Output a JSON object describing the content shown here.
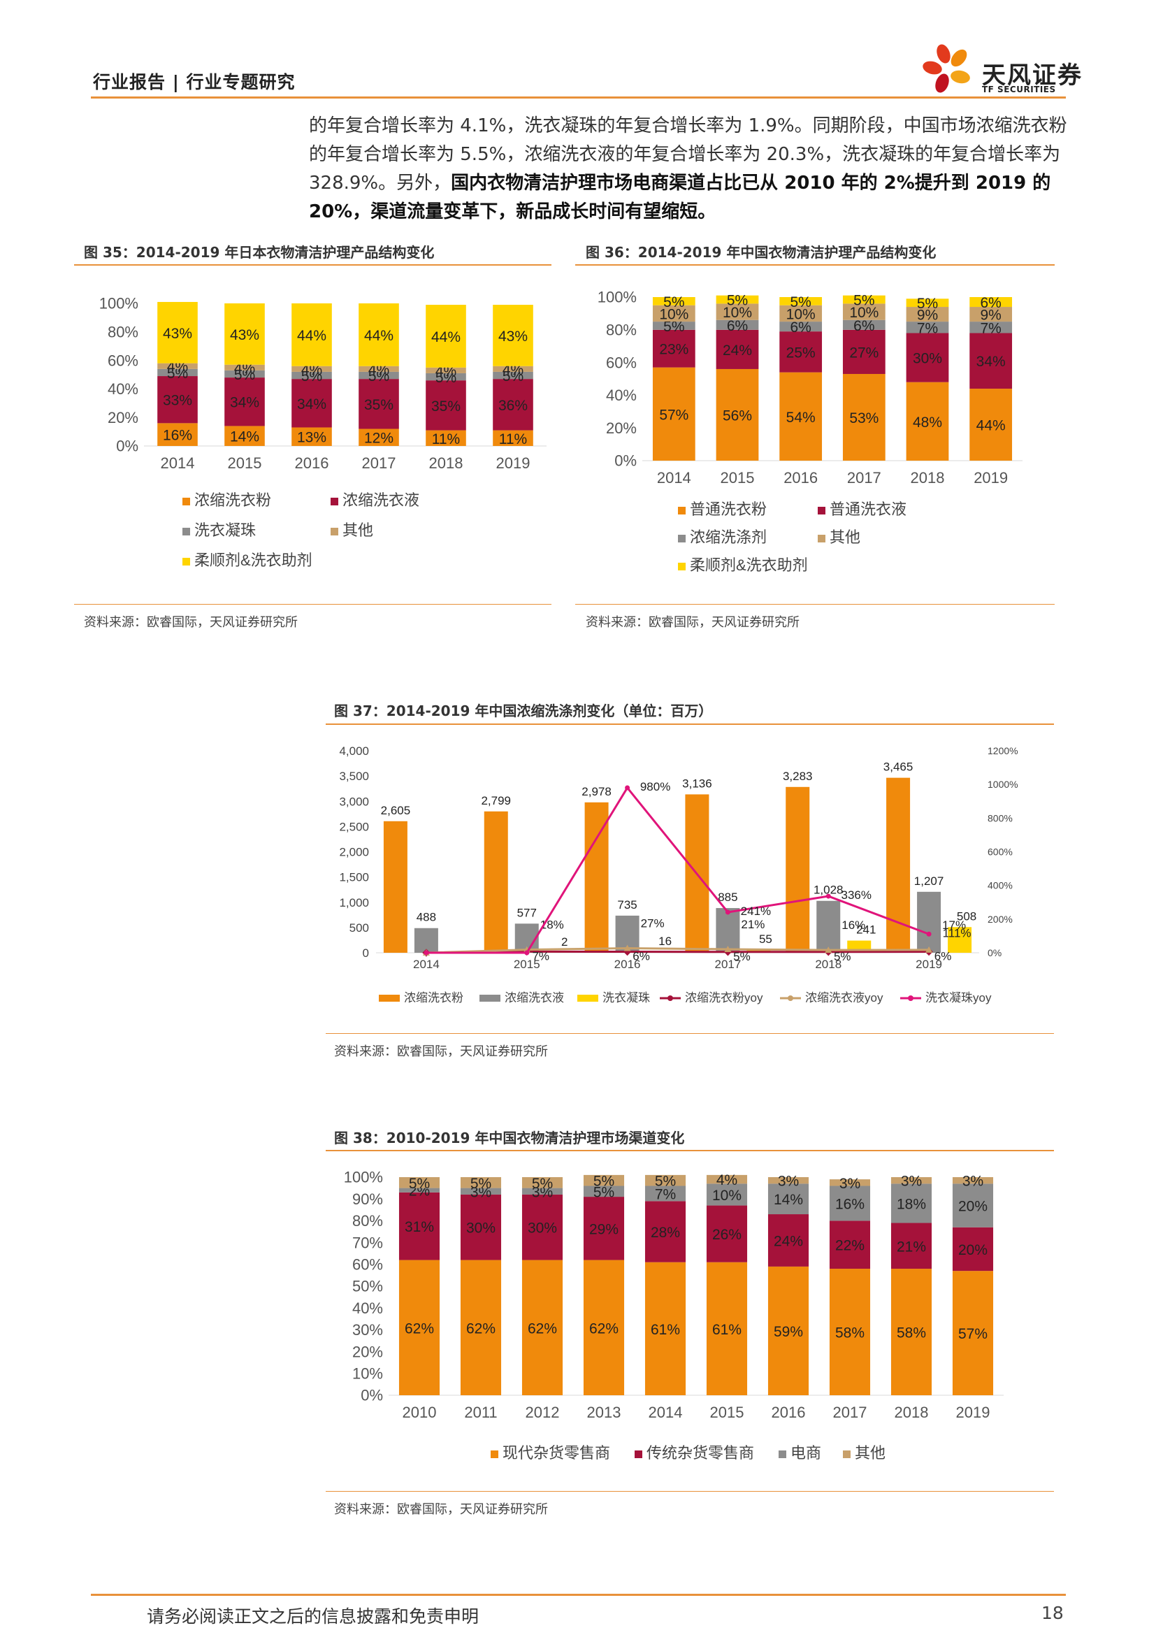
{
  "header": {
    "title": "行业报告 | 行业专题研究"
  },
  "logo": {
    "name_cn": "天风证券",
    "name_en": "TF SECURITIES"
  },
  "paragraph": {
    "normal1": "的年复合增长率为 4.1%，洗衣凝珠的年复合增长率为 1.9%。同期阶段，中国市场浓缩洗衣粉的年复合增长率为 5.5%，浓缩洗衣液的年复合增长率为 20.3%，洗衣凝珠的年复合增长率为 328.9%。另外，",
    "bold": "国内衣物清洁护理市场电商渠道占比已从 2010 年的 2%提升到 2019 的 20%，渠道流量变革下，新品成长时间有望缩短。"
  },
  "figures": {
    "fig35": {
      "title": "图 35：2014-2019 年日本衣物清洁护理产品结构变化",
      "source": "资料来源：欧睿国际，天风证券研究所"
    },
    "fig36": {
      "title": "图 36：2014-2019 年中国衣物清洁护理产品结构变化",
      "source": "资料来源：欧睿国际，天风证券研究所"
    },
    "fig37": {
      "title": "图 37：2014-2019 年中国浓缩洗涤剂变化（单位：百万）",
      "source": "资料来源：欧睿国际，天风证券研究所"
    },
    "fig38": {
      "title": "图 38：2010-2019 年中国衣物清洁护理市场渠道变化",
      "source": "资料来源：欧睿国际，天风证券研究所"
    }
  },
  "chart_data": [
    {
      "id": "fig35",
      "type": "bar",
      "stacked": true,
      "categories": [
        "2014",
        "2015",
        "2016",
        "2017",
        "2018",
        "2019"
      ],
      "yticks": [
        "0%",
        "20%",
        "40%",
        "60%",
        "80%",
        "100%"
      ],
      "ylim": [
        0,
        100
      ],
      "series": [
        {
          "name": "浓缩洗衣粉",
          "color": "#f08a0c",
          "values": [
            16,
            14,
            13,
            12,
            11,
            11
          ]
        },
        {
          "name": "浓缩洗衣液",
          "color": "#a5123a",
          "values": [
            33,
            34,
            34,
            35,
            35,
            36
          ]
        },
        {
          "name": "洗衣凝珠",
          "color": "#8c8c8c",
          "values": [
            5,
            5,
            5,
            5,
            5,
            5
          ]
        },
        {
          "name": "其他",
          "color": "#c8a06a",
          "values": [
            4,
            4,
            4,
            4,
            4,
            4
          ]
        },
        {
          "name": "柔顺剂&洗衣助剂",
          "color": "#ffd400",
          "values": [
            43,
            43,
            44,
            44,
            44,
            43
          ]
        }
      ],
      "labels": [
        [
          "16%",
          "14%",
          "13%",
          "12%",
          "11%",
          "11%"
        ],
        [
          "33%",
          "34%",
          "34%",
          "35%",
          "35%",
          "36%"
        ],
        [
          "5%",
          "5%",
          "5%",
          "5%",
          "5%",
          "5%"
        ],
        [
          "4%",
          "4%",
          "4%",
          "4%",
          "4%",
          "4%"
        ],
        [
          "43%",
          "43%",
          "44%",
          "44%",
          "44%",
          "43%"
        ]
      ],
      "legend": "bottom"
    },
    {
      "id": "fig36",
      "type": "bar",
      "stacked": true,
      "categories": [
        "2014",
        "2015",
        "2016",
        "2017",
        "2018",
        "2019"
      ],
      "yticks": [
        "0%",
        "20%",
        "40%",
        "60%",
        "80%",
        "100%"
      ],
      "ylim": [
        0,
        100
      ],
      "series": [
        {
          "name": "普通洗衣粉",
          "color": "#f08a0c",
          "values": [
            57,
            56,
            54,
            53,
            48,
            44
          ]
        },
        {
          "name": "普通洗衣液",
          "color": "#a5123a",
          "values": [
            23,
            24,
            25,
            27,
            30,
            34
          ]
        },
        {
          "name": "浓缩洗涤剂",
          "color": "#8c8c8c",
          "values": [
            5,
            6,
            6,
            6,
            7,
            7
          ]
        },
        {
          "name": "其他",
          "color": "#c8a06a",
          "values": [
            10,
            10,
            10,
            10,
            9,
            9
          ]
        },
        {
          "name": "柔顺剂&洗衣助剂",
          "color": "#ffd400",
          "values": [
            5,
            5,
            5,
            5,
            5,
            6
          ]
        }
      ],
      "labels": [
        [
          "57%",
          "56%",
          "54%",
          "53%",
          "48%",
          "44%"
        ],
        [
          "23%",
          "24%",
          "25%",
          "27%",
          "30%",
          "34%"
        ],
        [
          "5%",
          "6%",
          "6%",
          "6%",
          "7%",
          "7%"
        ],
        [
          "10%",
          "10%",
          "10%",
          "10%",
          "9%",
          "9%"
        ],
        [
          "5%",
          "5%",
          "5%",
          "5%",
          "5%",
          "6%"
        ]
      ],
      "legend": "bottom"
    },
    {
      "id": "fig37",
      "type": "bar",
      "combo": "bar+line",
      "categories": [
        "2014",
        "2015",
        "2016",
        "2017",
        "2018",
        "2019"
      ],
      "yticks": [
        "0",
        "500",
        "1,000",
        "1,500",
        "2,000",
        "2,500",
        "3,000",
        "3,500",
        "4,000"
      ],
      "ylim": [
        0,
        4000
      ],
      "y2ticks": [
        "0%",
        "200%",
        "400%",
        "600%",
        "800%",
        "1000%",
        "1200%"
      ],
      "y2lim": [
        0,
        1200
      ],
      "bar_series": [
        {
          "name": "浓缩洗衣粉",
          "color": "#f08a0c",
          "values": [
            2605,
            2799,
            2978,
            3136,
            3283,
            3465
          ],
          "labels": [
            "2,605",
            "2,799",
            "2,978",
            "3,136",
            "3,283",
            "3,465"
          ]
        },
        {
          "name": "浓缩洗衣液",
          "color": "#8c8c8c",
          "values": [
            488,
            577,
            735,
            885,
            1028,
            1207
          ],
          "labels": [
            "488",
            "577",
            "735",
            "885",
            "1,028",
            "1,207"
          ]
        },
        {
          "name": "洗衣凝珠",
          "color": "#ffd400",
          "values": [
            0,
            2,
            16,
            55,
            241,
            508
          ],
          "labels": [
            "",
            "2",
            "16",
            "55",
            "241",
            "508"
          ]
        }
      ],
      "line_series": [
        {
          "name": "浓缩洗衣粉yoy",
          "color": "#a5123a",
          "values": [
            0,
            7,
            6,
            5,
            5,
            6
          ],
          "labels": [
            "",
            "7%",
            "6%",
            "5%",
            "5%",
            "6%"
          ]
        },
        {
          "name": "浓缩洗衣液yoy",
          "color": "#c8a06a",
          "values": [
            0,
            18,
            27,
            21,
            16,
            17
          ],
          "labels": [
            "",
            "18%",
            "27%",
            "21%",
            "16%",
            "17%"
          ]
        },
        {
          "name": "洗衣凝珠yoy",
          "color": "#e0147a",
          "values": [
            0,
            0,
            980,
            241,
            336,
            111
          ],
          "labels": [
            "",
            "",
            "980%",
            "241%",
            "336%",
            "111%"
          ]
        }
      ],
      "legend": "bottom"
    },
    {
      "id": "fig38",
      "type": "bar",
      "stacked": true,
      "categories": [
        "2010",
        "2011",
        "2012",
        "2013",
        "2014",
        "2015",
        "2016",
        "2017",
        "2018",
        "2019"
      ],
      "yticks": [
        "0%",
        "10%",
        "20%",
        "30%",
        "40%",
        "50%",
        "60%",
        "70%",
        "80%",
        "90%",
        "100%"
      ],
      "ylim": [
        0,
        100
      ],
      "series": [
        {
          "name": "现代杂货零售商",
          "color": "#f08a0c",
          "values": [
            62,
            62,
            62,
            62,
            61,
            61,
            59,
            58,
            58,
            57
          ]
        },
        {
          "name": "传统杂货零售商",
          "color": "#a5123a",
          "values": [
            31,
            30,
            30,
            29,
            28,
            26,
            24,
            22,
            21,
            20
          ]
        },
        {
          "name": "电商",
          "color": "#8c8c8c",
          "values": [
            2,
            3,
            3,
            5,
            7,
            10,
            14,
            16,
            18,
            20
          ]
        },
        {
          "name": "其他",
          "color": "#c8a06a",
          "values": [
            5,
            5,
            5,
            5,
            5,
            4,
            3,
            3,
            3,
            3
          ]
        }
      ],
      "labels": [
        [
          "62%",
          "62%",
          "62%",
          "62%",
          "61%",
          "61%",
          "59%",
          "58%",
          "58%",
          "57%"
        ],
        [
          "31%",
          "30%",
          "30%",
          "29%",
          "28%",
          "26%",
          "24%",
          "22%",
          "21%",
          "20%"
        ],
        [
          "2%",
          "3%",
          "3%",
          "5%",
          "7%",
          "10%",
          "14%",
          "16%",
          "18%",
          "20%"
        ],
        [
          "5%",
          "5%",
          "5%",
          "5%",
          "5%",
          "4%",
          "3%",
          "3%",
          "3%",
          "3%"
        ]
      ],
      "legend": "bottom"
    }
  ],
  "footer": {
    "disclaimer": "请务必阅读正文之后的信息披露和免责申明",
    "page": "18"
  }
}
